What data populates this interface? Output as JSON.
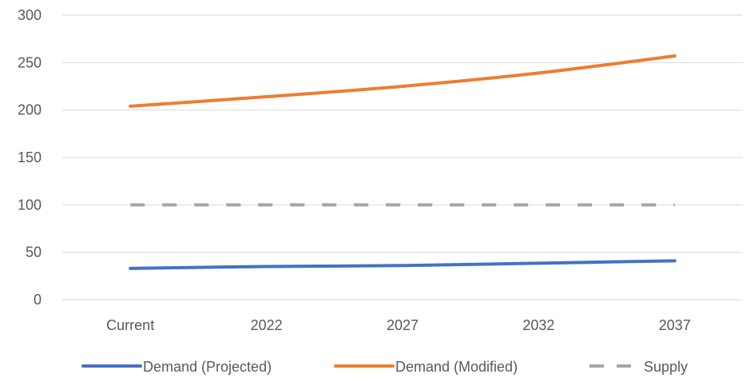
{
  "chart_data": {
    "type": "line",
    "title": "",
    "xlabel": "",
    "ylabel": "",
    "categories": [
      "Current",
      "2022",
      "2027",
      "2032",
      "2037"
    ],
    "ylim": [
      0,
      300
    ],
    "yticks": [
      0,
      50,
      100,
      150,
      200,
      250,
      300
    ],
    "grid": true,
    "legend_position": "bottom",
    "series": [
      {
        "name": "Demand (Projected)",
        "values": [
          33,
          35,
          36,
          38.5,
          41
        ],
        "color": "#4472c4",
        "style": "solid"
      },
      {
        "name": "Demand (Modified)",
        "values": [
          204,
          214,
          225,
          239,
          257
        ],
        "color": "#ed7d31",
        "style": "solid"
      },
      {
        "name": "Supply",
        "values": [
          100,
          100,
          100,
          100,
          100
        ],
        "color": "#a5a5a5",
        "style": "dashed"
      }
    ]
  }
}
